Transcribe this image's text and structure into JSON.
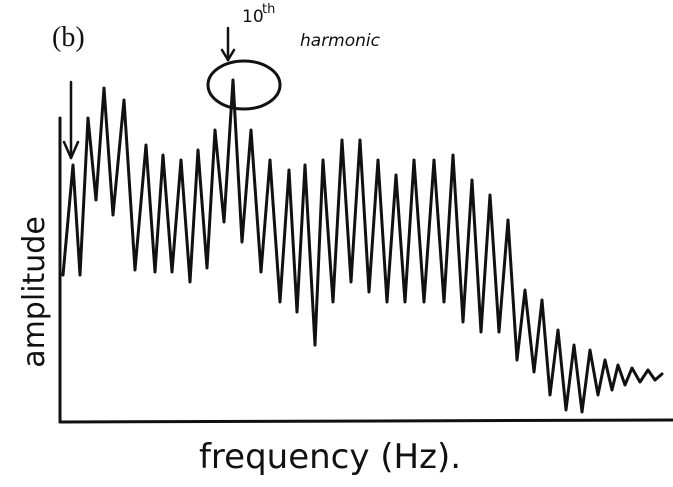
{
  "panel_label": "(b)",
  "annotation": {
    "number": "10",
    "suffix": "th",
    "text": "harmonic"
  },
  "y_axis_label": "amplitude",
  "x_axis_label": "frequency (Hz)."
}
